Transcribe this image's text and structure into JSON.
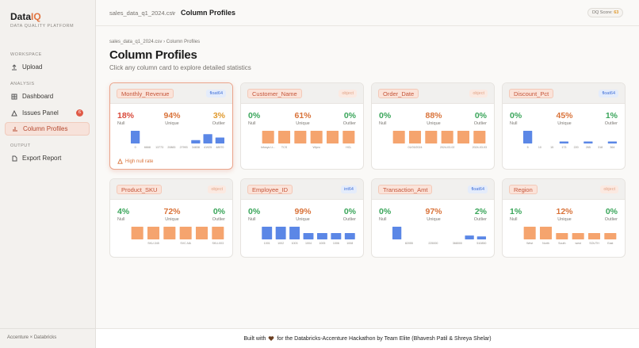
{
  "sidebar": {
    "brand": "Data",
    "brand_accent": "IQ",
    "tagline": "DATA QUALITY PLATFORM",
    "sections": [
      {
        "title": "WORKSPACE",
        "items": [
          {
            "label": "Upload"
          }
        ]
      },
      {
        "title": "ANALYSIS",
        "items": [
          {
            "label": "Dashboard"
          },
          {
            "label": "Issues Panel",
            "badge": "6"
          },
          {
            "label": "Column Profiles",
            "active": true
          }
        ]
      },
      {
        "title": "OUTPUT",
        "items": [
          {
            "label": "Export Report"
          }
        ]
      }
    ],
    "footer": "Accenture × Databricks"
  },
  "topbar": {
    "file": "sales_data_q1_2024.csv",
    "separator": "›",
    "page": "Column Profiles",
    "score_label": "DQ Score:",
    "score_value": "63"
  },
  "header": {
    "breadcrumb_file": "sales_data_q1_2024.csv",
    "breadcrumb_separator": "›",
    "breadcrumb_page": "Column Profiles",
    "title": "Column Profiles",
    "subtitle": "Click any column card to explore detailed statistics"
  },
  "cards": [
    {
      "name": "Monthly_Revenue",
      "dtype": "float64",
      "selected": true,
      "warning": "High null rate",
      "stats": [
        {
          "value": "18%",
          "label": "Null",
          "color": "#d9493a"
        },
        {
          "value": "94%",
          "label": "Unique",
          "color": "#d9733a"
        },
        {
          "value": "3%",
          "label": "Outlier",
          "color": "#e09a2e"
        }
      ],
      "histogram": {
        "color": "#5b87e6",
        "counts": [
          15,
          0,
          0,
          0,
          0,
          4,
          11,
          7
        ],
        "labels": [
          "0",
          "6668",
          "13773",
          "20883",
          "27993",
          "34838",
          "41925",
          "48970"
        ]
      }
    },
    {
      "name": "Customer_Name",
      "dtype": "object",
      "stats": [
        {
          "value": "0%",
          "label": "Null",
          "color": "#3aa55a"
        },
        {
          "value": "61%",
          "label": "Unique",
          "color": "#d9733a"
        },
        {
          "value": "0%",
          "label": "Outlier",
          "color": "#3aa55a"
        }
      ],
      "histogram": {
        "color": "#f5a46e",
        "counts": [
          16,
          16,
          16,
          16,
          16,
          16
        ],
        "labels": [
          "Infosys Lt...",
          "TCS",
          null,
          "Wipro",
          null,
          "HCL"
        ]
      }
    },
    {
      "name": "Order_Date",
      "dtype": "object",
      "stats": [
        {
          "value": "0%",
          "label": "Null",
          "color": "#3aa55a"
        },
        {
          "value": "88%",
          "label": "Unique",
          "color": "#d9733a"
        },
        {
          "value": "0%",
          "label": "Outlier",
          "color": "#3aa55a"
        }
      ],
      "histogram": {
        "color": "#f5a46e",
        "counts": [
          16,
          16,
          16,
          16,
          16,
          16
        ],
        "labels": [
          null,
          "01/03/2024",
          null,
          "2024-03-02",
          null,
          "2024-03-03"
        ]
      }
    },
    {
      "name": "Discount_Pct",
      "dtype": "float64",
      "stats": [
        {
          "value": "0%",
          "label": "Null",
          "color": "#3aa55a"
        },
        {
          "value": "45%",
          "label": "Unique",
          "color": "#d9733a"
        },
        {
          "value": "1%",
          "label": "Outlier",
          "color": "#3aa55a"
        }
      ],
      "histogram": {
        "color": "#5b87e6",
        "counts": [
          13,
          0,
          0,
          2,
          0,
          2,
          0,
          2
        ],
        "labels": [
          "5",
          "10",
          "15",
          "173",
          "220",
          "265",
          "318",
          "364"
        ]
      }
    },
    {
      "name": "Product_SKU",
      "dtype": "object",
      "stats": [
        {
          "value": "4%",
          "label": "Null",
          "color": "#3aa55a"
        },
        {
          "value": "72%",
          "label": "Unique",
          "color": "#d9733a"
        },
        {
          "value": "0%",
          "label": "Outlier",
          "color": "#3aa55a"
        }
      ],
      "histogram": {
        "color": "#f5a46e",
        "counts": [
          16,
          16,
          16,
          16,
          16,
          16
        ],
        "labels": [
          null,
          "SKU-345",
          null,
          "SVC-NA",
          null,
          "SKU-003"
        ]
      }
    },
    {
      "name": "Employee_ID",
      "dtype": "int64",
      "stats": [
        {
          "value": "0%",
          "label": "Null",
          "color": "#3aa55a"
        },
        {
          "value": "99%",
          "label": "Unique",
          "color": "#d9733a"
        },
        {
          "value": "0%",
          "label": "Outlier",
          "color": "#3aa55a"
        }
      ],
      "histogram": {
        "color": "#5b87e6",
        "counts": [
          16,
          16,
          16,
          8,
          8,
          8,
          8
        ],
        "labels": [
          "1001",
          "1002",
          "1003",
          "1004",
          "1005",
          "1006",
          "1008"
        ]
      }
    },
    {
      "name": "Transaction_Amt",
      "dtype": "float64",
      "stats": [
        {
          "value": "0%",
          "label": "Null",
          "color": "#3aa55a"
        },
        {
          "value": "97%",
          "label": "Unique",
          "color": "#d9733a"
        },
        {
          "value": "2%",
          "label": "Outlier",
          "color": "#3aa55a"
        }
      ],
      "histogram": {
        "color": "#5b87e6",
        "counts": [
          13,
          0,
          0,
          0,
          0,
          0,
          4,
          3
        ],
        "labels": [
          null,
          "82055",
          null,
          "225000",
          null,
          "368000",
          null,
          "510850"
        ]
      }
    },
    {
      "name": "Region",
      "dtype": "object",
      "stats": [
        {
          "value": "1%",
          "label": "Null",
          "color": "#3aa55a"
        },
        {
          "value": "12%",
          "label": "Unique",
          "color": "#d9733a"
        },
        {
          "value": "0%",
          "label": "Outlier",
          "color": "#3aa55a"
        }
      ],
      "histogram": {
        "color": "#f5a46e",
        "counts": [
          16,
          16,
          8,
          8,
          8,
          8
        ],
        "labels": [
          "West",
          "North",
          "South",
          "west",
          "SOUTH",
          "East"
        ]
      }
    }
  ],
  "footer": {
    "before": "Built with",
    "after": "for the Databricks-Accenture Hackathon by Team Elite (Bhavesh Patil & Shreya Shelar)"
  }
}
